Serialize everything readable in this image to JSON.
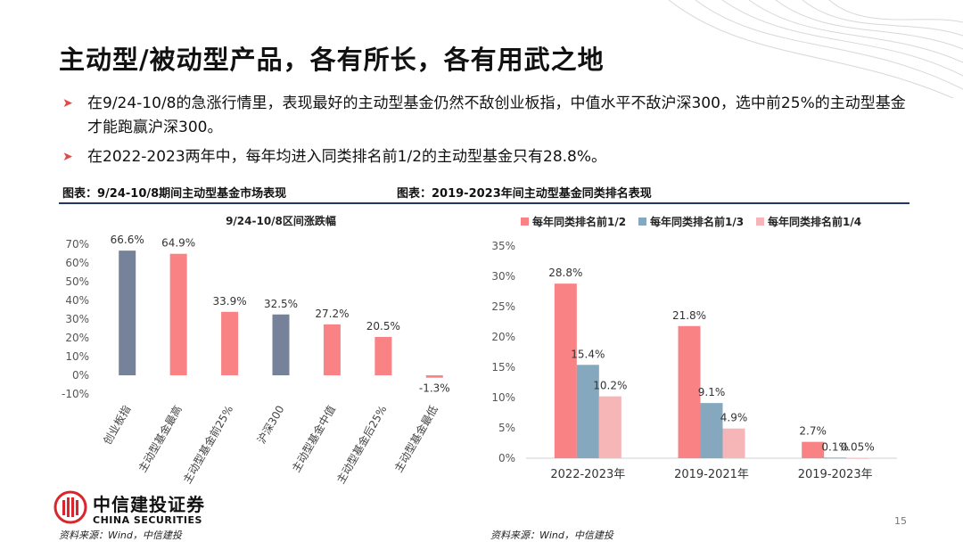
{
  "header": {
    "title": "主动型/被动型产品，各有所长，各有用武之地"
  },
  "bullets": [
    "在9/24-10/8的急涨行情里，表现最好的主动型基金仍然不敌创业板指，中值水平不敌沪深300，选中前25%的主动型基金才能跑赢沪深300。",
    "在2022-2023两年中，每年均进入同类排名前1/2的主动型基金只有28.8%。"
  ],
  "captions": {
    "left": "图表：9/24-10/8期间主动型基金市场表现",
    "right": "图表：2019-2023年间主动型基金同类排名表现"
  },
  "sources": {
    "left": "资料来源：Wind，中信建投",
    "right": "资料来源：Wind，中信建投"
  },
  "page_number": "15",
  "logo": {
    "cn": "中信建投证券",
    "en": "CHINA SECURITIES"
  },
  "colors": {
    "red": "#f98384",
    "slate": "#75829a",
    "blue": "#86a8bf",
    "pink": "#f6b6b8",
    "accent": "#e24a4a",
    "navy": "#1f3864"
  },
  "chart_data": [
    {
      "type": "bar",
      "title": "9/24-10/8区间涨跌幅",
      "categories": [
        "创业板指",
        "主动型基金最高",
        "主动型基金前25%",
        "沪深300",
        "主动型基金中值",
        "主动型基金后25%",
        "主动型基金最低"
      ],
      "values": [
        66.6,
        64.9,
        33.9,
        32.5,
        27.2,
        20.5,
        -1.3
      ],
      "value_labels": [
        "66.6%",
        "64.9%",
        "33.9%",
        "32.5%",
        "27.2%",
        "20.5%",
        "-1.3%"
      ],
      "bar_colors": [
        "slate",
        "red",
        "red",
        "slate",
        "red",
        "red",
        "red"
      ],
      "ylim": [
        -10,
        70
      ],
      "yticks": [
        -10,
        0,
        10,
        20,
        30,
        40,
        50,
        60,
        70
      ],
      "ytick_labels": [
        "-10%",
        "0%",
        "10%",
        "20%",
        "30%",
        "40%",
        "50%",
        "60%",
        "70%"
      ],
      "xlabel": "",
      "ylabel": "",
      "grid": false
    },
    {
      "type": "bar",
      "title": "",
      "categories": [
        "2022-2023年",
        "2019-2021年",
        "2019-2023年"
      ],
      "series": [
        {
          "name": "每年同类排名前1/2",
          "values": [
            28.8,
            21.8,
            2.7
          ],
          "labels": [
            "28.8%",
            "21.8%",
            "2.7%"
          ],
          "color": "red"
        },
        {
          "name": "每年同类排名前1/3",
          "values": [
            15.4,
            9.1,
            0.1
          ],
          "labels": [
            "15.4%",
            "9.1%",
            "0.1%"
          ],
          "color": "blue"
        },
        {
          "name": "每年同类排名前1/4",
          "values": [
            10.2,
            4.9,
            0.05
          ],
          "labels": [
            "10.2%",
            "4.9%",
            "0.05%"
          ],
          "color": "pink"
        }
      ],
      "ylim": [
        0,
        35
      ],
      "yticks": [
        0,
        5,
        10,
        15,
        20,
        25,
        30,
        35
      ],
      "ytick_labels": [
        "0%",
        "5%",
        "10%",
        "15%",
        "20%",
        "25%",
        "30%",
        "35%"
      ],
      "legend": "top",
      "xlabel": "",
      "ylabel": "",
      "grid": false
    }
  ]
}
